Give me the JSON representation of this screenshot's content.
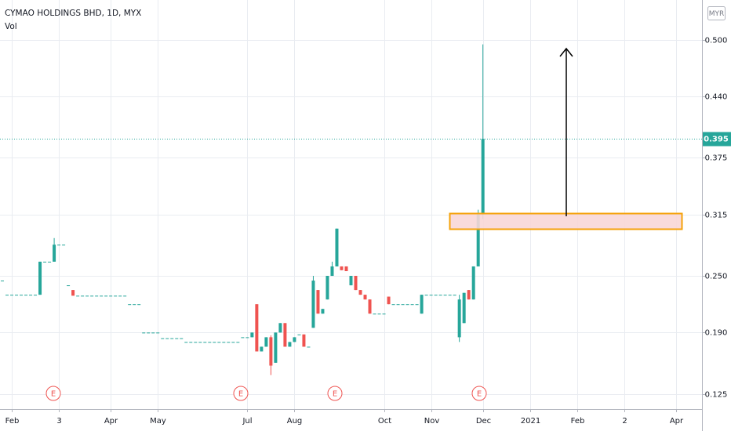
{
  "chart_data": {
    "type": "candlestick",
    "title": "CYMAO HOLDINGS BHD, 1D, MYX",
    "volume_label": "Vol",
    "currency": "MYR",
    "event_markers": [
      "E",
      "E",
      "E",
      "E"
    ],
    "up_color": "#26a69a",
    "down_color": "#ef5350",
    "grid": true,
    "ylim": [
      0.109,
      0.542
    ],
    "yticks": [
      0.125,
      {
        "value": 0.19,
        "label": "0.190"
      },
      {
        "value": 0.25,
        "label": "0.250"
      },
      0.315,
      0.375,
      {
        "value": 0.44,
        "label": "0.440"
      },
      {
        "value": 0.5,
        "label": "0.500"
      }
    ],
    "categories": [
      null,
      null,
      "Feb",
      null,
      null,
      null,
      null,
      null,
      null,
      null,
      null,
      null,
      "3",
      null,
      null,
      null,
      null,
      null,
      null,
      null,
      null,
      null,
      null,
      "Apr",
      null,
      null,
      null,
      null,
      null,
      null,
      null,
      null,
      null,
      "May",
      null,
      null,
      null,
      null,
      null,
      null,
      null,
      null,
      null,
      null,
      null,
      null,
      null,
      null,
      null,
      null,
      null,
      null,
      "Jul",
      null,
      null,
      null,
      null,
      null,
      null,
      null,
      null,
      null,
      "Aug",
      null,
      null,
      null,
      null,
      null,
      null,
      null,
      null,
      null,
      null,
      null,
      null,
      null,
      null,
      null,
      null,
      null,
      null,
      "Oct",
      null,
      null,
      null,
      null,
      null,
      null,
      null,
      null,
      null,
      "Nov",
      null,
      null,
      null,
      null,
      null,
      null,
      null,
      null,
      null,
      null,
      "Dec",
      null,
      null,
      null,
      null,
      null,
      null,
      null,
      null,
      null,
      "2021",
      null,
      null,
      null,
      null,
      null,
      null,
      null,
      null,
      null,
      "Feb",
      null,
      null,
      null,
      null,
      null,
      null,
      null,
      null,
      null,
      "2",
      null,
      null,
      null,
      null,
      null,
      null,
      null,
      null,
      null,
      null,
      "Apr",
      null,
      null,
      null,
      null,
      null
    ],
    "open": [
      0.245,
      0.23,
      0.23,
      0.23,
      0.23,
      0.23,
      0.23,
      0.23,
      0.23,
      0.265,
      0.265,
      0.265,
      0.283,
      0.283,
      0.24,
      0.235,
      0.229,
      0.229,
      0.229,
      0.229,
      0.229,
      0.229,
      0.229,
      0.229,
      0.229,
      0.229,
      0.229,
      0.22,
      0.22,
      0.22,
      0.19,
      0.19,
      0.19,
      0.19,
      0.184,
      0.184,
      0.184,
      0.184,
      0.184,
      0.18,
      0.18,
      0.18,
      0.18,
      0.18,
      0.18,
      0.18,
      0.18,
      0.18,
      0.18,
      0.18,
      0.18,
      0.185,
      0.185,
      0.185,
      0.22,
      0.17,
      0.175,
      0.185,
      0.158,
      0.19,
      0.2,
      0.175,
      0.18,
      0.188,
      0.188,
      0.175,
      0.195,
      0.235,
      0.21,
      0.225,
      0.25,
      0.26,
      0.26,
      0.26,
      0.24,
      0.25,
      0.235,
      0.23,
      0.225,
      0.21,
      0.21,
      0.21,
      0.228,
      0.22,
      0.22,
      0.22,
      0.22,
      0.22,
      0.22,
      0.21,
      0.23,
      0.23,
      0.23,
      0.23,
      0.23,
      0.23,
      0.23,
      0.185,
      0.2,
      0.235,
      0.225,
      0.26,
      0.315,
      null,
      null,
      null,
      null,
      null,
      null,
      null,
      null,
      null,
      null,
      null,
      null,
      null,
      null,
      null,
      null,
      null,
      null,
      null,
      null,
      null,
      null,
      null,
      null,
      null,
      null,
      null,
      null,
      null,
      null,
      null,
      null,
      null,
      null,
      null,
      null,
      null,
      null,
      null,
      null,
      null,
      null,
      null,
      null,
      null,
      null
    ],
    "high": [
      0.245,
      0.23,
      0.23,
      0.23,
      0.23,
      0.23,
      0.23,
      0.23,
      0.265,
      0.265,
      0.265,
      0.29,
      0.283,
      0.283,
      0.24,
      0.235,
      0.229,
      0.229,
      0.229,
      0.229,
      0.229,
      0.229,
      0.229,
      0.229,
      0.229,
      0.229,
      0.229,
      0.22,
      0.22,
      0.22,
      0.19,
      0.19,
      0.19,
      0.19,
      0.184,
      0.184,
      0.184,
      0.184,
      0.184,
      0.18,
      0.18,
      0.18,
      0.18,
      0.18,
      0.18,
      0.18,
      0.18,
      0.18,
      0.18,
      0.18,
      0.18,
      0.185,
      0.185,
      0.19,
      0.22,
      0.175,
      0.185,
      0.187,
      0.19,
      0.2,
      0.2,
      0.18,
      0.185,
      0.188,
      0.188,
      0.175,
      0.25,
      0.235,
      0.215,
      0.25,
      0.265,
      0.3,
      0.26,
      0.26,
      0.25,
      0.25,
      0.235,
      0.23,
      0.225,
      0.21,
      0.21,
      0.21,
      0.228,
      0.22,
      0.22,
      0.22,
      0.22,
      0.22,
      0.22,
      0.23,
      0.23,
      0.23,
      0.23,
      0.23,
      0.23,
      0.23,
      0.23,
      0.23,
      0.232,
      0.235,
      0.26,
      0.32,
      0.495,
      null,
      null,
      null,
      null,
      null,
      null,
      null,
      null,
      null,
      null,
      null,
      null,
      null,
      null,
      null,
      null,
      null,
      null,
      null,
      null,
      null,
      null,
      null,
      null,
      null,
      null,
      null,
      null,
      null,
      null,
      null,
      null,
      null,
      null,
      null,
      null,
      null,
      null,
      null,
      null,
      null,
      null,
      null,
      null,
      null,
      null
    ],
    "low": [
      0.245,
      0.23,
      0.23,
      0.23,
      0.23,
      0.23,
      0.23,
      0.23,
      0.23,
      0.265,
      0.265,
      0.265,
      0.283,
      0.283,
      0.24,
      0.229,
      0.229,
      0.229,
      0.229,
      0.229,
      0.229,
      0.229,
      0.229,
      0.229,
      0.229,
      0.229,
      0.229,
      0.22,
      0.22,
      0.22,
      0.19,
      0.19,
      0.19,
      0.19,
      0.184,
      0.184,
      0.184,
      0.184,
      0.184,
      0.18,
      0.18,
      0.18,
      0.18,
      0.18,
      0.18,
      0.18,
      0.18,
      0.18,
      0.18,
      0.18,
      0.18,
      0.185,
      0.185,
      0.185,
      0.17,
      0.17,
      0.175,
      0.145,
      0.158,
      0.19,
      0.175,
      0.175,
      0.18,
      0.188,
      0.175,
      0.175,
      0.195,
      0.21,
      0.21,
      0.225,
      0.25,
      0.26,
      0.256,
      0.255,
      0.24,
      0.235,
      0.23,
      0.225,
      0.21,
      0.21,
      0.21,
      0.21,
      0.22,
      0.22,
      0.22,
      0.22,
      0.22,
      0.22,
      0.22,
      0.21,
      0.23,
      0.23,
      0.23,
      0.23,
      0.23,
      0.23,
      0.23,
      0.18,
      0.2,
      0.225,
      0.225,
      0.26,
      0.31,
      null,
      null,
      null,
      null,
      null,
      null,
      null,
      null,
      null,
      null,
      null,
      null,
      null,
      null,
      null,
      null,
      null,
      null,
      null,
      null,
      null,
      null,
      null,
      null,
      null,
      null,
      null,
      null,
      null,
      null,
      null,
      null,
      null,
      null,
      null,
      null,
      null,
      null,
      null,
      null,
      null,
      null,
      null,
      null,
      null,
      null
    ],
    "close": [
      0.245,
      0.23,
      0.23,
      0.23,
      0.23,
      0.23,
      0.23,
      0.23,
      0.265,
      0.265,
      0.265,
      0.283,
      0.283,
      0.283,
      0.24,
      0.229,
      0.229,
      0.229,
      0.229,
      0.229,
      0.229,
      0.229,
      0.229,
      0.229,
      0.229,
      0.229,
      0.229,
      0.22,
      0.22,
      0.22,
      0.19,
      0.19,
      0.19,
      0.19,
      0.184,
      0.184,
      0.184,
      0.184,
      0.184,
      0.18,
      0.18,
      0.18,
      0.18,
      0.18,
      0.18,
      0.18,
      0.18,
      0.18,
      0.18,
      0.18,
      0.18,
      0.185,
      0.185,
      0.19,
      0.17,
      0.175,
      0.185,
      0.155,
      0.19,
      0.2,
      0.175,
      0.18,
      0.185,
      0.188,
      0.175,
      0.175,
      0.245,
      0.21,
      0.215,
      0.25,
      0.26,
      0.3,
      0.256,
      0.255,
      0.25,
      0.235,
      0.23,
      0.225,
      0.21,
      0.21,
      0.21,
      0.21,
      0.22,
      0.22,
      0.22,
      0.22,
      0.22,
      0.22,
      0.22,
      0.23,
      0.23,
      0.23,
      0.23,
      0.23,
      0.23,
      0.23,
      0.23,
      0.225,
      0.232,
      0.225,
      0.26,
      0.315,
      0.395,
      null,
      null,
      null,
      null,
      null,
      null,
      null,
      null,
      null,
      null,
      null,
      null,
      null,
      null,
      null,
      null,
      null,
      null,
      null,
      null,
      null,
      null,
      null,
      null,
      null,
      null,
      null,
      null,
      null,
      null,
      null,
      null,
      null,
      null,
      null,
      null,
      null,
      null,
      null,
      null,
      null,
      null,
      null,
      null,
      null,
      null
    ]
  }
}
